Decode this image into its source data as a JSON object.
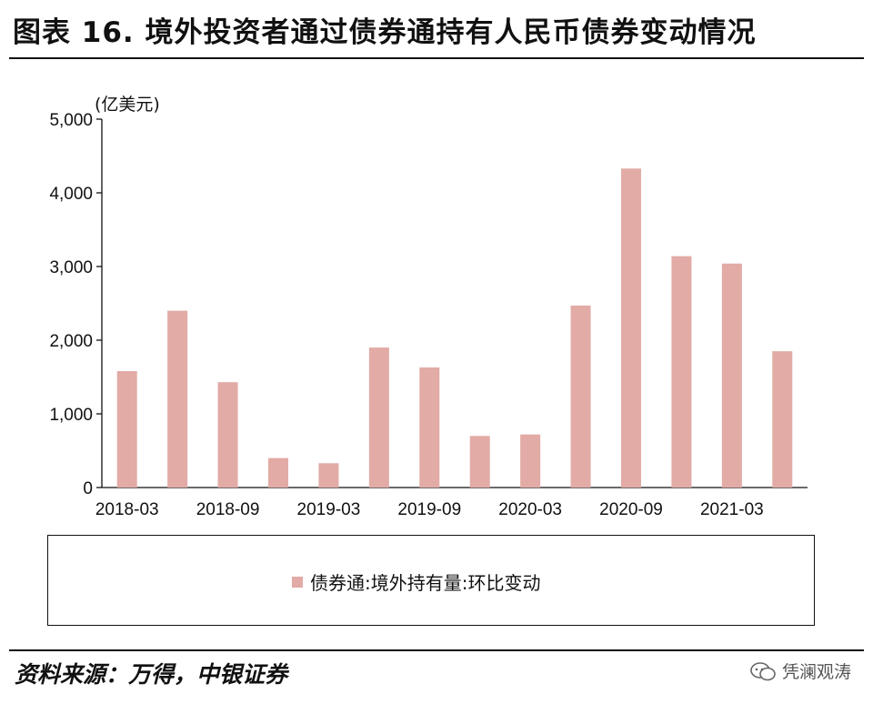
{
  "title": "图表 16. 境外投资者通过债券通持有人民币债券变动情况",
  "unit_label": "(亿美元)",
  "source": "资料来源：万得，中银证券",
  "watermark": "凭澜观涛",
  "colors": {
    "bar": "#e2aba6",
    "axis": "#111111"
  },
  "chart_data": {
    "type": "bar",
    "title": "",
    "xlabel": "",
    "ylabel": "(亿美元)",
    "ylim": [
      0,
      5000
    ],
    "yticks": [
      0,
      1000,
      2000,
      3000,
      4000,
      5000
    ],
    "ytick_labels": [
      "0",
      "1,000",
      "2,000",
      "3,000",
      "4,000",
      "5,000"
    ],
    "categories": [
      "2018-03",
      "2018-06",
      "2018-09",
      "2018-12",
      "2019-03",
      "2019-06",
      "2019-09",
      "2019-12",
      "2020-03",
      "2020-06",
      "2020-09",
      "2020-12",
      "2021-03",
      "2021-06"
    ],
    "xtick_labels": [
      "2018-03",
      "2018-09",
      "2019-03",
      "2019-09",
      "2020-03",
      "2020-09",
      "2021-03"
    ],
    "series": [
      {
        "name": "债券通:境外持有量:环比变动",
        "values": [
          1580,
          2400,
          1430,
          400,
          330,
          1900,
          1630,
          700,
          720,
          2470,
          4330,
          3140,
          3040,
          1850
        ]
      }
    ],
    "legend": "bottom",
    "grid": false
  }
}
